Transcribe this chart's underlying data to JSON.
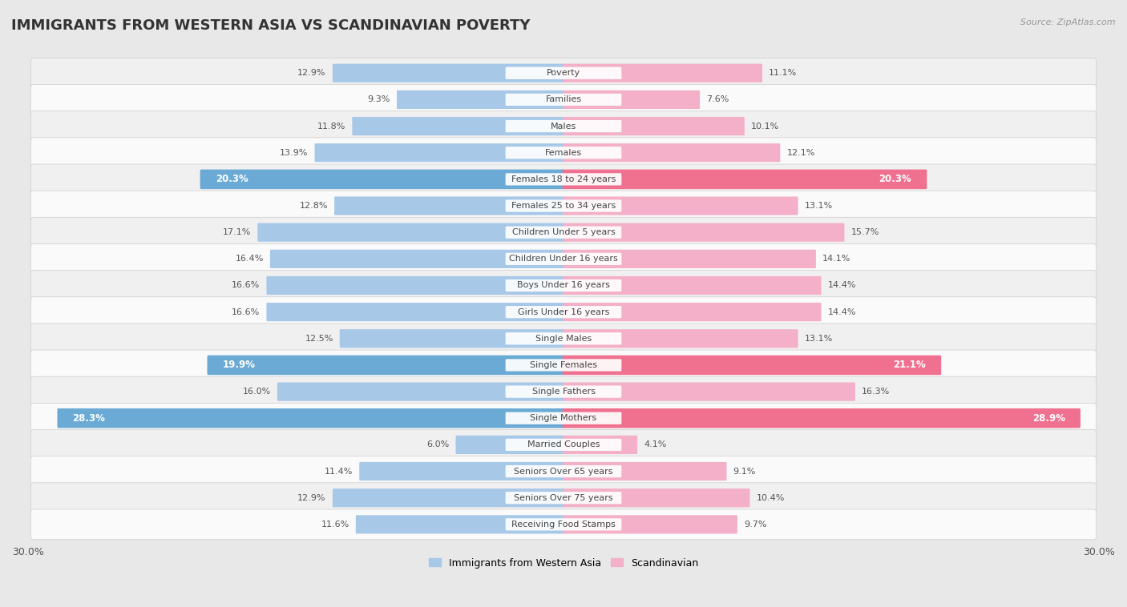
{
  "title": "IMMIGRANTS FROM WESTERN ASIA VS SCANDINAVIAN POVERTY",
  "source": "Source: ZipAtlas.com",
  "categories": [
    "Poverty",
    "Families",
    "Males",
    "Females",
    "Females 18 to 24 years",
    "Females 25 to 34 years",
    "Children Under 5 years",
    "Children Under 16 years",
    "Boys Under 16 years",
    "Girls Under 16 years",
    "Single Males",
    "Single Females",
    "Single Fathers",
    "Single Mothers",
    "Married Couples",
    "Seniors Over 65 years",
    "Seniors Over 75 years",
    "Receiving Food Stamps"
  ],
  "left_values": [
    12.9,
    9.3,
    11.8,
    13.9,
    20.3,
    12.8,
    17.1,
    16.4,
    16.6,
    16.6,
    12.5,
    19.9,
    16.0,
    28.3,
    6.0,
    11.4,
    12.9,
    11.6
  ],
  "right_values": [
    11.1,
    7.6,
    10.1,
    12.1,
    20.3,
    13.1,
    15.7,
    14.1,
    14.4,
    14.4,
    13.1,
    21.1,
    16.3,
    28.9,
    4.1,
    9.1,
    10.4,
    9.7
  ],
  "left_color": "#a8c8e8",
  "right_color": "#f4b0c8",
  "highlight_left_color": "#6aaad4",
  "highlight_right_color": "#f07090",
  "highlight_rows": [
    4,
    11,
    13
  ],
  "left_label": "Immigrants from Western Asia",
  "right_label": "Scandinavian",
  "xlim": 30.0,
  "row_bg_odd": "#f0f0f0",
  "row_bg_even": "#fafafa",
  "background_color": "#e8e8e8",
  "title_fontsize": 13,
  "bar_height": 0.62
}
